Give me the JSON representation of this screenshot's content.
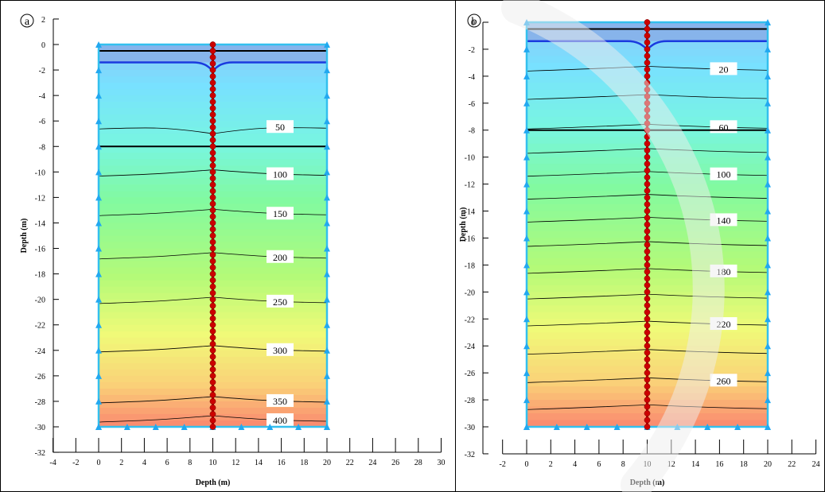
{
  "chart_data": [
    {
      "type": "contour",
      "panel_label": "a",
      "xlabel": "Depth (m)",
      "ylabel": "Depth (m)",
      "xlim": [
        -4,
        30
      ],
      "ylim": [
        -32,
        2
      ],
      "x_ticks": [
        -4,
        -2,
        0,
        2,
        4,
        6,
        8,
        10,
        12,
        14,
        16,
        18,
        20,
        22,
        24,
        26,
        28,
        30
      ],
      "y_ticks": [
        2,
        0,
        -2,
        -4,
        -6,
        -8,
        -10,
        -12,
        -14,
        -16,
        -18,
        -20,
        -22,
        -24,
        -26,
        -28,
        -30,
        -32
      ],
      "domain": {
        "x": [
          0,
          20
        ],
        "y": [
          -30,
          0
        ]
      },
      "pile_x": 10,
      "pile_bottom": -30,
      "water_table_depth": -1.4,
      "layer_boundaries": [
        0,
        -0.5,
        -8
      ],
      "contours": [
        {
          "label": "50",
          "depth": -6.5
        },
        {
          "label": "100",
          "depth": -10.2
        },
        {
          "label": "150",
          "depth": -13.3
        },
        {
          "label": "200",
          "depth": -16.7
        },
        {
          "label": "250",
          "depth": -20.2
        },
        {
          "label": "300",
          "depth": -24
        },
        {
          "label": "350",
          "depth": -28
        },
        {
          "label": "400",
          "depth": -29.5
        }
      ]
    },
    {
      "type": "contour",
      "panel_label": "b",
      "xlabel": "Depth (m)",
      "ylabel": "Depth (m)",
      "xlim": [
        -2,
        24
      ],
      "ylim": [
        -32,
        0
      ],
      "x_ticks": [
        -2,
        0,
        2,
        4,
        6,
        8,
        10,
        12,
        14,
        16,
        18,
        20,
        22,
        24
      ],
      "y_ticks": [
        0,
        -2,
        -4,
        -6,
        -8,
        -10,
        -12,
        -14,
        -16,
        -18,
        -20,
        -22,
        -24,
        -26,
        -28,
        -30,
        -32
      ],
      "domain": {
        "x": [
          0,
          20
        ],
        "y": [
          -30,
          0
        ]
      },
      "pile_x": 10,
      "pile_bottom": -30,
      "water_table_depth": -1.4,
      "layer_boundaries": [
        0,
        -0.5,
        -8
      ],
      "contours": [
        {
          "label": "20",
          "depth": -3.5
        },
        {
          "label": "",
          "depth": -5.6
        },
        {
          "label": "60",
          "depth": -7.8
        },
        {
          "label": "",
          "depth": -9.6
        },
        {
          "label": "100",
          "depth": -11.3
        },
        {
          "label": "",
          "depth": -13
        },
        {
          "label": "140",
          "depth": -14.7
        },
        {
          "label": "",
          "depth": -16.5
        },
        {
          "label": "180",
          "depth": -18.5
        },
        {
          "label": "",
          "depth": -20.4
        },
        {
          "label": "220",
          "depth": -22.4
        },
        {
          "label": "",
          "depth": -24.5
        },
        {
          "label": "260",
          "depth": -26.6
        },
        {
          "label": "",
          "depth": -28.6
        }
      ]
    }
  ]
}
